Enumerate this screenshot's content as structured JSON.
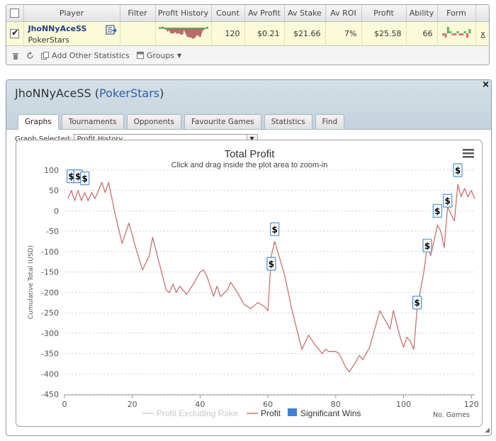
{
  "stats_table": {
    "headers": {
      "player": "Player",
      "filter": "Filter",
      "profit_history": "Profit History",
      "count": "Count",
      "av_profit": "Av Profit",
      "av_stake": "Av Stake",
      "av_roi": "Av ROI",
      "profit": "Profit",
      "ability": "Ability",
      "form": "Form"
    },
    "row": {
      "player_name": "JhoNNyAceSS",
      "site": "PokerStars",
      "filter": "",
      "count": "120",
      "av_profit": "$0.21",
      "av_stake": "$21.66",
      "av_roi": "7%",
      "profit": "$25.58",
      "ability": "66",
      "remove": "x"
    },
    "toolbar": {
      "add_stats": "Add Other Statistics",
      "groups": "Groups"
    }
  },
  "window": {
    "player_name": "JhoNNyAceSS",
    "site_name": "PokerStars",
    "close": "×",
    "tabs": [
      "Graphs",
      "Tournaments",
      "Opponents",
      "Favourite Games",
      "Statistics",
      "Find"
    ],
    "active_tab": "Graphs",
    "graph_selected_label": "Graph Selected:",
    "graph_selected_value": "Profit History"
  },
  "chart_data": {
    "type": "line",
    "title": "Total Profit",
    "subtitle": "Click and drag inside the plot area to zoom-in",
    "ylabel": "Cumulative Total (USD)",
    "xlabel": "No. Games",
    "xlim": [
      0,
      121
    ],
    "ylim": [
      -450,
      100
    ],
    "x_ticks": [
      0,
      20,
      40,
      60,
      80,
      100,
      120
    ],
    "y_ticks": [
      100,
      50,
      0,
      -50,
      -100,
      -150,
      -200,
      -250,
      -300,
      -350,
      -400,
      -450
    ],
    "legend": [
      {
        "name": "Profit Excluding Rake",
        "color": "#cccccc",
        "kind": "line"
      },
      {
        "name": "Profit",
        "color": "#c9726d",
        "kind": "line"
      },
      {
        "name": "Significant Wins",
        "color": "#3f7fd6",
        "kind": "box"
      }
    ],
    "series": [
      {
        "name": "Profit",
        "color": "#c9726d",
        "points": [
          [
            1,
            30
          ],
          [
            2,
            50
          ],
          [
            3,
            25
          ],
          [
            4,
            50
          ],
          [
            5,
            25
          ],
          [
            6,
            45
          ],
          [
            7,
            25
          ],
          [
            8,
            45
          ],
          [
            9,
            30
          ],
          [
            11,
            70
          ],
          [
            12,
            45
          ],
          [
            13,
            70
          ],
          [
            15,
            -10
          ],
          [
            17,
            -80
          ],
          [
            19,
            -30
          ],
          [
            21,
            -90
          ],
          [
            23,
            -145
          ],
          [
            25,
            -110
          ],
          [
            26,
            -65
          ],
          [
            28,
            -130
          ],
          [
            30,
            -195
          ],
          [
            31,
            -200
          ],
          [
            32,
            -180
          ],
          [
            33,
            -200
          ],
          [
            34,
            -185
          ],
          [
            36,
            -205
          ],
          [
            38,
            -180
          ],
          [
            40,
            -150
          ],
          [
            41,
            -145
          ],
          [
            42,
            -160
          ],
          [
            44,
            -210
          ],
          [
            45,
            -185
          ],
          [
            46,
            -210
          ],
          [
            48,
            -195
          ],
          [
            49,
            -175
          ],
          [
            51,
            -200
          ],
          [
            53,
            -230
          ],
          [
            55,
            -240
          ],
          [
            57,
            -225
          ],
          [
            59,
            -235
          ],
          [
            60,
            -245
          ],
          [
            61,
            -110
          ],
          [
            62,
            -75
          ],
          [
            65,
            -160
          ],
          [
            67,
            -240
          ],
          [
            70,
            -340
          ],
          [
            72,
            -305
          ],
          [
            74,
            -330
          ],
          [
            76,
            -350
          ],
          [
            77,
            -340
          ],
          [
            78,
            -345
          ],
          [
            80,
            -345
          ],
          [
            81,
            -350
          ],
          [
            83,
            -385
          ],
          [
            84,
            -395
          ],
          [
            86,
            -370
          ],
          [
            87,
            -355
          ],
          [
            88,
            -365
          ],
          [
            90,
            -335
          ],
          [
            93,
            -245
          ],
          [
            96,
            -290
          ],
          [
            97,
            -245
          ],
          [
            99,
            -310
          ],
          [
            100,
            -335
          ],
          [
            101,
            -310
          ],
          [
            102,
            -320
          ],
          [
            103,
            -340
          ],
          [
            104,
            -240
          ],
          [
            106,
            -150
          ],
          [
            107,
            -85
          ],
          [
            108,
            -110
          ],
          [
            110,
            -35
          ],
          [
            111,
            -50
          ],
          [
            112,
            -90
          ],
          [
            113,
            10
          ],
          [
            115,
            -25
          ],
          [
            116,
            65
          ],
          [
            117,
            35
          ],
          [
            118,
            55
          ],
          [
            119,
            35
          ],
          [
            120,
            50
          ],
          [
            121,
            30
          ]
        ]
      }
    ],
    "significant_wins": [
      {
        "x": 2,
        "y": 85,
        "label": "$"
      },
      {
        "x": 4,
        "y": 85,
        "label": "$"
      },
      {
        "x": 6,
        "y": 80,
        "label": "$"
      },
      {
        "x": 61,
        "y": -130,
        "label": "$"
      },
      {
        "x": 62,
        "y": -45,
        "label": "$"
      },
      {
        "x": 104,
        "y": -225,
        "label": "$"
      },
      {
        "x": 107,
        "y": -85,
        "label": "$"
      },
      {
        "x": 110,
        "y": 0,
        "label": "$"
      },
      {
        "x": 113,
        "y": 25,
        "label": "$"
      },
      {
        "x": 116,
        "y": 100,
        "label": "$"
      }
    ],
    "sparkline_form_values": [
      -1,
      -2,
      3,
      1,
      -1,
      -1,
      1,
      -1,
      -1,
      1,
      -2,
      2
    ]
  }
}
